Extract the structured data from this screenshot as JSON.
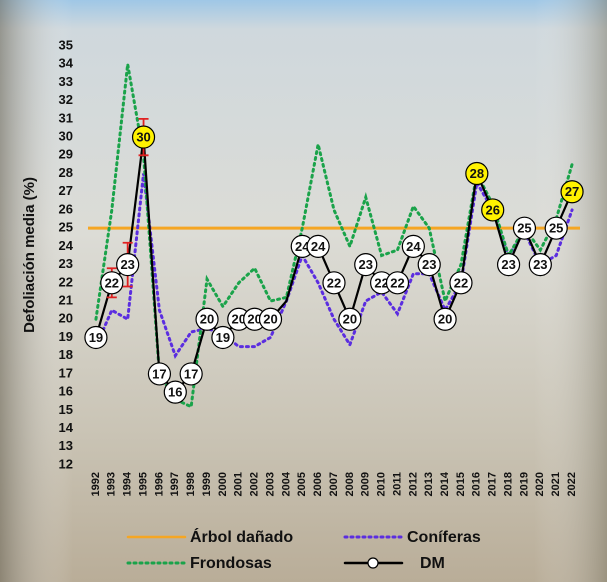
{
  "chart_data": {
    "type": "line",
    "y_label": "Defoliación media (%)",
    "categories": [
      "1992",
      "1993",
      "1994",
      "1995",
      "1996",
      "1997",
      "1998",
      "1999",
      "2000",
      "2001",
      "2002",
      "2003",
      "2004",
      "2005",
      "2006",
      "2007",
      "2008",
      "2009",
      "2010",
      "2011",
      "2012",
      "2013",
      "2014",
      "2015",
      "2016",
      "2017",
      "2018",
      "2019",
      "2020",
      "2021",
      "2022"
    ],
    "ylim": [
      12,
      35
    ],
    "yticks": [
      12,
      13,
      14,
      15,
      16,
      17,
      18,
      19,
      20,
      21,
      22,
      23,
      24,
      25,
      26,
      27,
      28,
      29,
      30,
      31,
      32,
      33,
      34,
      35
    ],
    "legend": "bottom",
    "series": [
      {
        "name": "Árbol dañado",
        "color": "#f5a623",
        "style": "solid",
        "value": 25
      },
      {
        "name": "Coníferas",
        "color": "#5b2de0",
        "style": "dotted",
        "values": [
          18.5,
          20.5,
          20,
          28,
          20.5,
          18,
          19.3,
          19.5,
          19.2,
          18.5,
          18.5,
          19,
          21,
          23.5,
          22,
          20,
          18.6,
          21,
          21.5,
          20.3,
          22.5,
          22.5,
          20.5,
          22,
          27.5,
          26,
          23.5,
          24.8,
          23,
          23.5,
          26
        ]
      },
      {
        "name": "Frondosas",
        "color": "#1aa34a",
        "style": "dotted",
        "values": [
          20,
          26,
          34,
          29,
          17,
          15.6,
          15.2,
          22.2,
          20.7,
          22,
          22.8,
          21,
          21.2,
          25,
          29.6,
          26,
          24,
          26.7,
          23.5,
          23.8,
          26.2,
          25,
          21,
          23,
          28,
          26.3,
          23.5,
          25,
          23.8,
          25.5,
          28.5
        ]
      },
      {
        "name": "DM",
        "color": "#000000",
        "style": "marker",
        "values": [
          19,
          22,
          23,
          30,
          17,
          16,
          17,
          20,
          19,
          20,
          20,
          20,
          21,
          24,
          24,
          22,
          20,
          23,
          22,
          22,
          24,
          23,
          20,
          22,
          28,
          26,
          23,
          25,
          23,
          25,
          27
        ],
        "value_labels": [
          "19",
          "22",
          "23",
          "30",
          "17",
          "16",
          "17",
          "20",
          "19",
          "20",
          "20",
          "20",
          null,
          "24",
          "24",
          "22",
          "20",
          "23",
          "22",
          "22",
          "24",
          "23",
          "20",
          "22",
          "28",
          "26",
          "23",
          "25",
          "23",
          "25",
          "27"
        ],
        "errors": [
          null,
          0.8,
          1.2,
          1,
          null,
          null,
          null,
          null,
          null,
          null,
          null,
          null,
          null,
          null,
          null,
          null,
          null,
          null,
          null,
          null,
          null,
          null,
          null,
          null,
          null,
          null,
          null,
          null,
          null,
          null,
          null
        ]
      }
    ]
  }
}
